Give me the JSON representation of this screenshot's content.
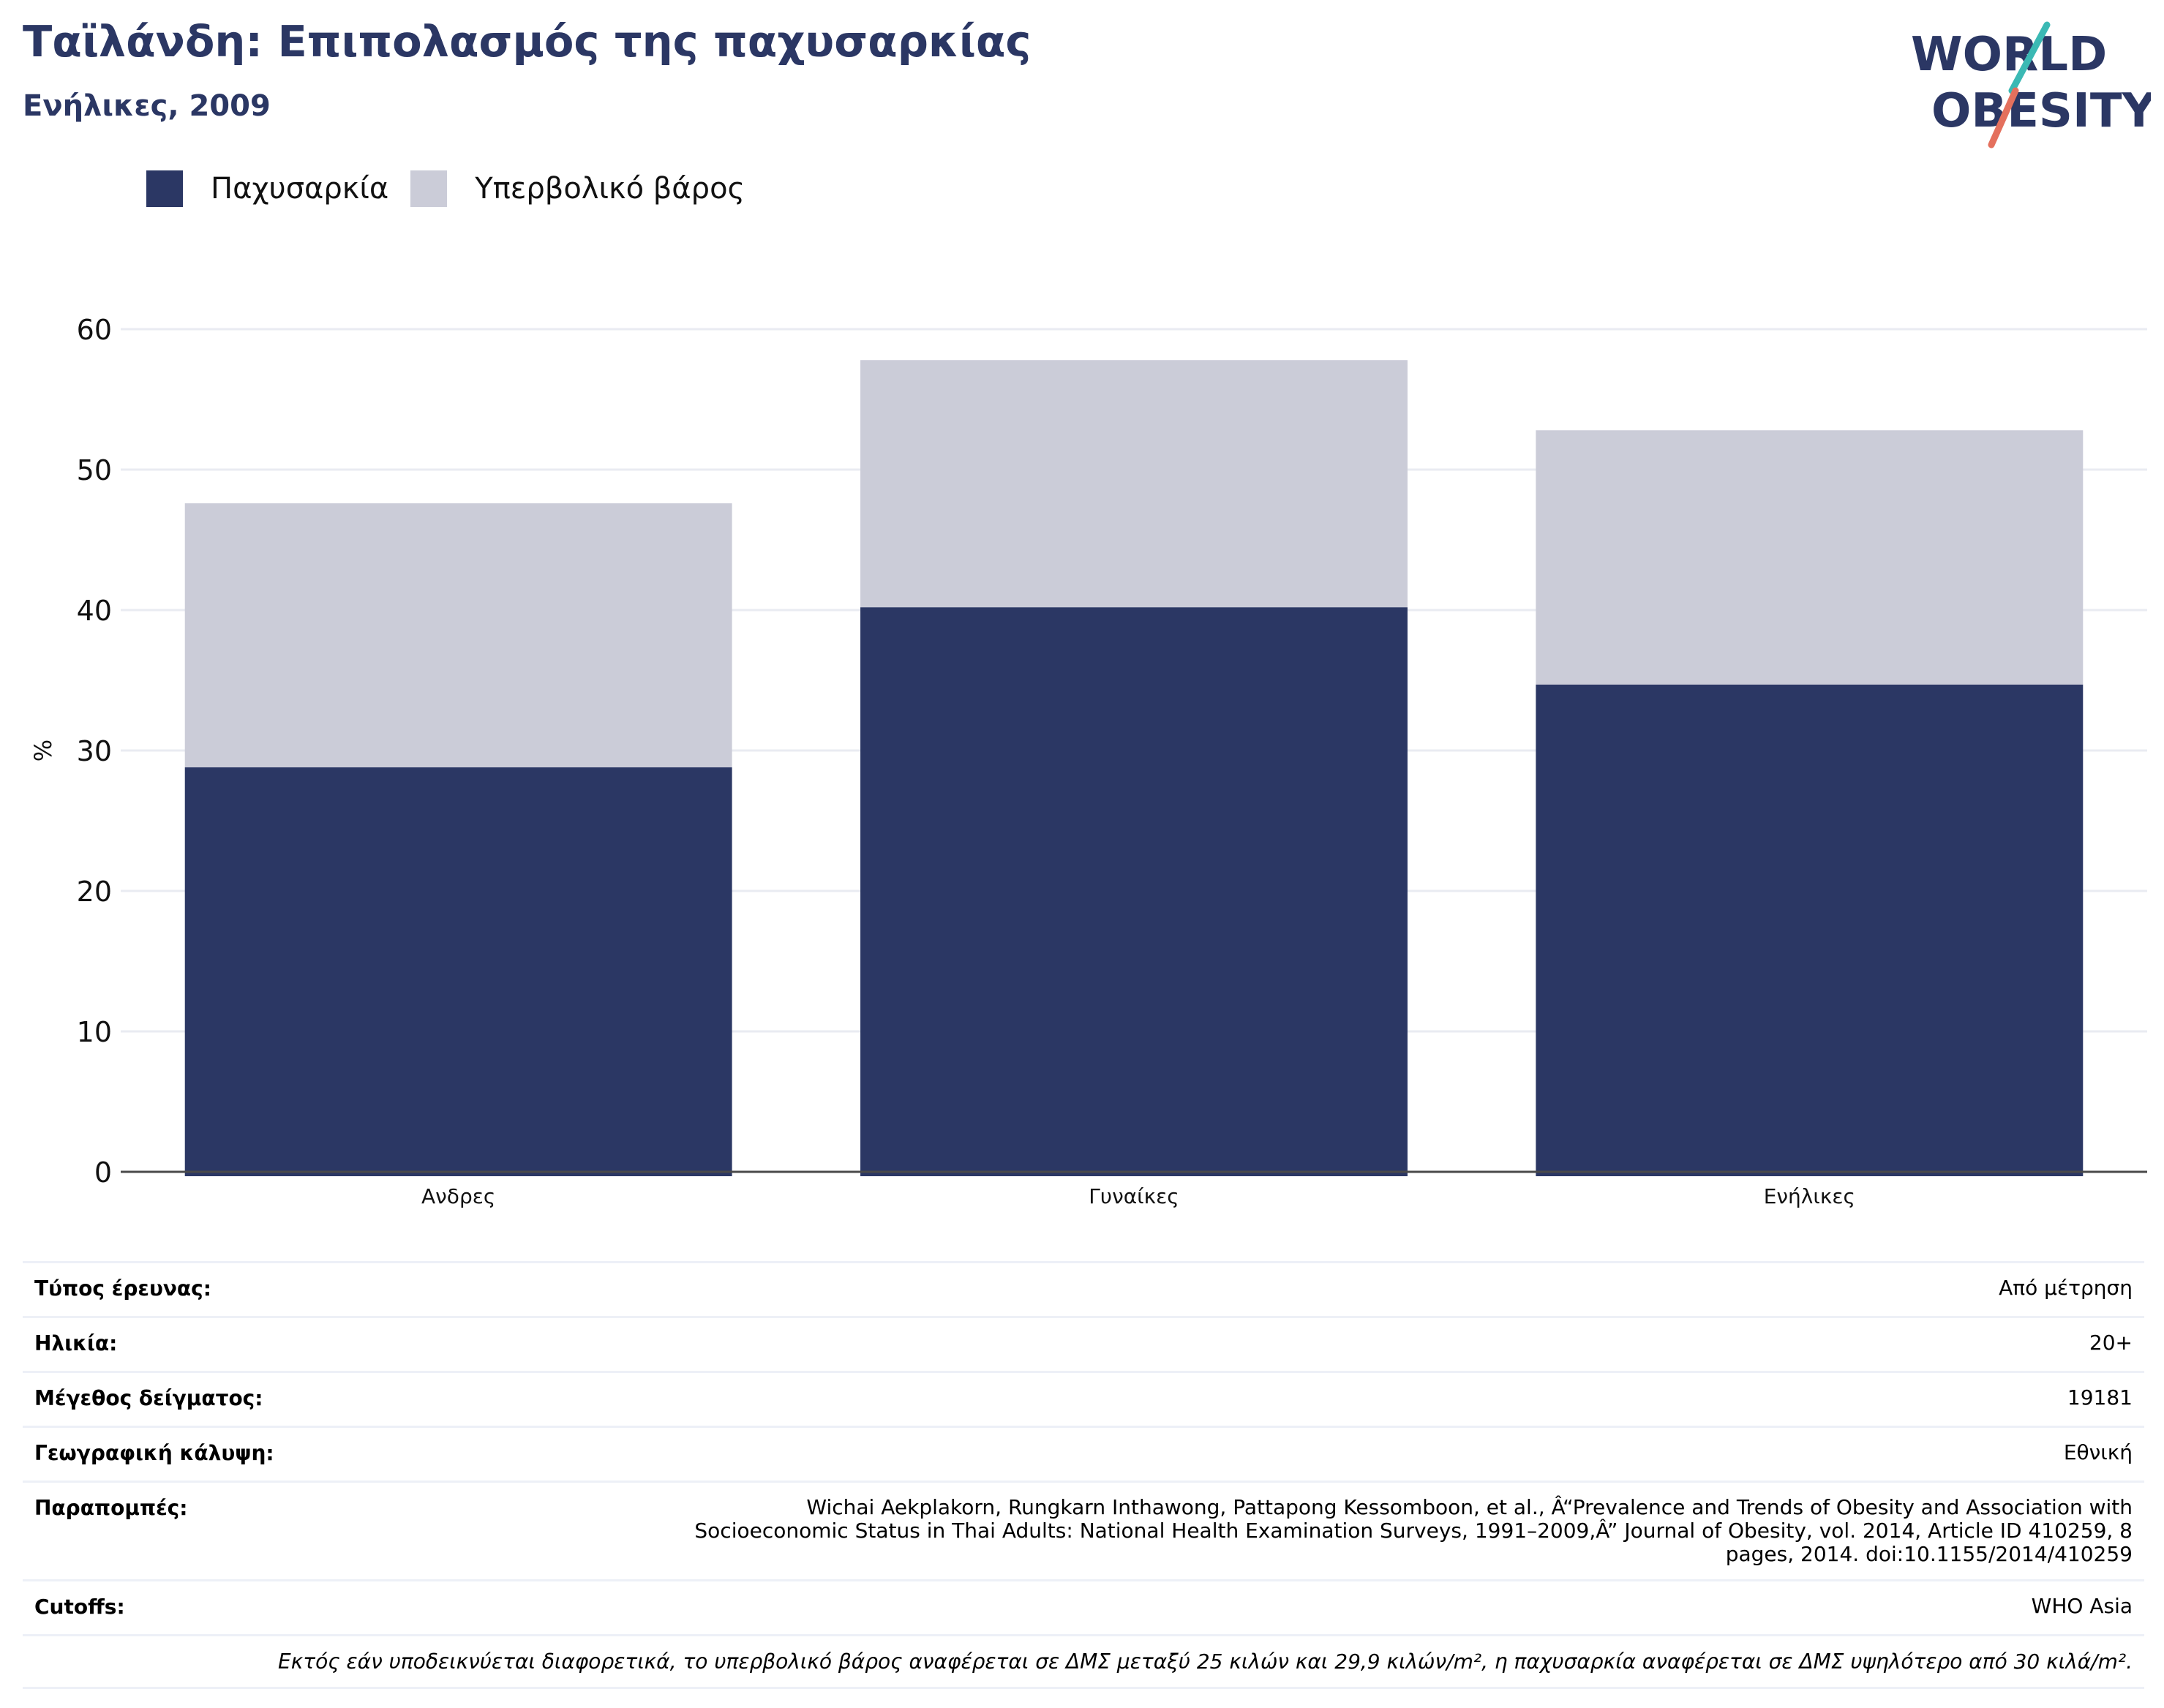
{
  "title": "Ταϊλάνδη: Επιπολασμός της παχυσαρκίας",
  "subtitle": "Ενήλικες, 2009",
  "logo": {
    "line1": "WORLD",
    "line2": "OBESITY"
  },
  "colors": {
    "obesity": "#2b3764",
    "overweight": "#cbccd8",
    "title": "#2b3764",
    "logo_text": "#2b3764",
    "logo_slash_top": "#3bb9b4",
    "logo_slash_bottom": "#e4705d",
    "grid": "#e9ebf2",
    "axis": "#4a4a4a"
  },
  "chart_data": {
    "type": "bar",
    "stacked": true,
    "categories": [
      "Ανδρες",
      "Γυναίκες",
      "Ενήλικες"
    ],
    "series": [
      {
        "name": "Παχυσαρκία",
        "values": [
          28.8,
          40.2,
          34.7
        ]
      },
      {
        "name": "Υπερβολικό βάρος",
        "values": [
          18.8,
          17.6,
          18.1
        ]
      }
    ],
    "ylabel": "%",
    "ylim": [
      0,
      60
    ],
    "yticks": [
      0,
      10,
      20,
      30,
      40,
      50,
      60
    ],
    "grid": true,
    "legend": "top-left"
  },
  "info_table": [
    {
      "label": "Τύπος έρευνας:",
      "value": "Από μέτρηση"
    },
    {
      "label": "Ηλικία:",
      "value": "20+"
    },
    {
      "label": "Μέγεθος δείγματος:",
      "value": "19181"
    },
    {
      "label": "Γεωγραφική κάλυψη:",
      "value": "Εθνική"
    },
    {
      "label": "Παραπομπές:",
      "value_lines": [
        "Wichai Aekplakorn, Rungkarn Inthawong, Pattapong Kessomboon, et al., Â“Prevalence and Trends of Obesity and Association with",
        "Socioeconomic Status in Thai Adults: National Health Examination Surveys, 1991–2009,Â” Journal of Obesity, vol. 2014, Article ID 410259, 8",
        "pages, 2014. doi:10.1155/2014/410259"
      ]
    },
    {
      "label": "Cutoffs:",
      "value": "WHO Asia"
    }
  ],
  "footnote": "Εκτός εάν υποδεικνύεται διαφορετικά, το υπερβολικό βάρος αναφέρεται σε ΔΜΣ μεταξύ 25 κιλών και 29,9 κιλών/m², η παχυσαρκία αναφέρεται σε ΔΜΣ υψηλότερο από 30 κιλά/m²."
}
